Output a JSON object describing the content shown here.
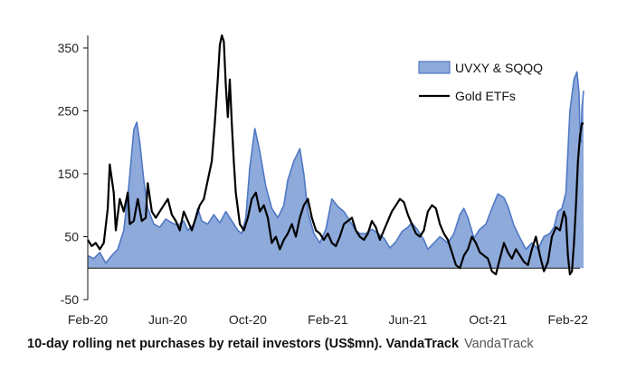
{
  "caption": {
    "text": "10-day rolling net purchases by retail investors (US$mn). VandaTrack",
    "credit": "VandaTrack"
  },
  "chart_data": {
    "type": "area",
    "ylim": [
      -50,
      370
    ],
    "yticks": [
      350,
      250,
      150,
      50,
      -50
    ],
    "xlim": [
      0,
      24.6
    ],
    "xticks": [
      {
        "label": "Feb-20",
        "x": 0
      },
      {
        "label": "Jun-20",
        "x": 4
      },
      {
        "label": "Oct-20",
        "x": 8
      },
      {
        "label": "Feb-21",
        "x": 12
      },
      {
        "label": "Jun-21",
        "x": 16
      },
      {
        "label": "Oct-21",
        "x": 20
      },
      {
        "label": "Feb-22",
        "x": 24
      }
    ],
    "legend_position": "top-right",
    "series": [
      {
        "name": "UVXY & SQQQ",
        "kind": "area",
        "color": "#8eaadb",
        "edge_color": "#4f78c4",
        "points": [
          [
            0,
            20
          ],
          [
            0.3,
            15
          ],
          [
            0.6,
            25
          ],
          [
            0.9,
            8
          ],
          [
            1.2,
            20
          ],
          [
            1.5,
            30
          ],
          [
            1.8,
            60
          ],
          [
            2.05,
            130
          ],
          [
            2.3,
            220
          ],
          [
            2.45,
            232
          ],
          [
            2.6,
            200
          ],
          [
            2.8,
            140
          ],
          [
            3.0,
            95
          ],
          [
            3.3,
            70
          ],
          [
            3.6,
            65
          ],
          [
            3.9,
            78
          ],
          [
            4.2,
            72
          ],
          [
            4.5,
            68
          ],
          [
            4.8,
            75
          ],
          [
            5.0,
            60
          ],
          [
            5.3,
            70
          ],
          [
            5.5,
            95
          ],
          [
            5.7,
            75
          ],
          [
            6.0,
            70
          ],
          [
            6.3,
            85
          ],
          [
            6.6,
            72
          ],
          [
            6.9,
            90
          ],
          [
            7.2,
            75
          ],
          [
            7.5,
            60
          ],
          [
            7.7,
            55
          ],
          [
            7.9,
            80
          ],
          [
            8.1,
            160
          ],
          [
            8.35,
            222
          ],
          [
            8.6,
            185
          ],
          [
            8.9,
            130
          ],
          [
            9.2,
            95
          ],
          [
            9.5,
            80
          ],
          [
            9.8,
            100
          ],
          [
            10.0,
            140
          ],
          [
            10.3,
            170
          ],
          [
            10.6,
            190
          ],
          [
            10.8,
            150
          ],
          [
            11.0,
            90
          ],
          [
            11.3,
            55
          ],
          [
            11.6,
            40
          ],
          [
            11.9,
            62
          ],
          [
            12.2,
            110
          ],
          [
            12.5,
            98
          ],
          [
            12.8,
            90
          ],
          [
            13.1,
            75
          ],
          [
            13.4,
            60
          ],
          [
            13.6,
            55
          ],
          [
            13.9,
            55
          ],
          [
            14.2,
            62
          ],
          [
            14.5,
            55
          ],
          [
            14.8,
            48
          ],
          [
            15.1,
            32
          ],
          [
            15.4,
            42
          ],
          [
            15.7,
            58
          ],
          [
            16.0,
            65
          ],
          [
            16.2,
            72
          ],
          [
            16.5,
            60
          ],
          [
            16.8,
            45
          ],
          [
            17.0,
            30
          ],
          [
            17.3,
            40
          ],
          [
            17.6,
            50
          ],
          [
            18.0,
            40
          ],
          [
            18.3,
            55
          ],
          [
            18.6,
            85
          ],
          [
            18.8,
            95
          ],
          [
            19.0,
            80
          ],
          [
            19.3,
            48
          ],
          [
            19.6,
            62
          ],
          [
            19.9,
            70
          ],
          [
            20.2,
            95
          ],
          [
            20.5,
            118
          ],
          [
            20.8,
            112
          ],
          [
            21.0,
            98
          ],
          [
            21.3,
            68
          ],
          [
            21.6,
            48
          ],
          [
            21.9,
            30
          ],
          [
            22.2,
            40
          ],
          [
            22.5,
            30
          ],
          [
            22.8,
            50
          ],
          [
            23.1,
            55
          ],
          [
            23.3,
            65
          ],
          [
            23.5,
            90
          ],
          [
            23.7,
            95
          ],
          [
            23.9,
            120
          ],
          [
            24.1,
            250
          ],
          [
            24.3,
            300
          ],
          [
            24.45,
            312
          ],
          [
            24.55,
            280
          ],
          [
            24.6,
            220
          ],
          [
            24.65,
            200
          ],
          [
            24.7,
            255
          ],
          [
            24.78,
            282
          ]
        ]
      },
      {
        "name": "Gold ETFs",
        "kind": "line",
        "color": "#000000",
        "points": [
          [
            0,
            45
          ],
          [
            0.2,
            35
          ],
          [
            0.4,
            40
          ],
          [
            0.6,
            30
          ],
          [
            0.8,
            40
          ],
          [
            1.0,
            95
          ],
          [
            1.1,
            165
          ],
          [
            1.3,
            120
          ],
          [
            1.4,
            60
          ],
          [
            1.6,
            110
          ],
          [
            1.8,
            90
          ],
          [
            2.0,
            120
          ],
          [
            2.1,
            70
          ],
          [
            2.3,
            75
          ],
          [
            2.5,
            110
          ],
          [
            2.7,
            75
          ],
          [
            2.9,
            80
          ],
          [
            3.0,
            135
          ],
          [
            3.2,
            90
          ],
          [
            3.4,
            80
          ],
          [
            3.6,
            90
          ],
          [
            3.8,
            100
          ],
          [
            4.0,
            110
          ],
          [
            4.2,
            85
          ],
          [
            4.4,
            75
          ],
          [
            4.6,
            60
          ],
          [
            4.8,
            90
          ],
          [
            5.0,
            75
          ],
          [
            5.2,
            60
          ],
          [
            5.4,
            80
          ],
          [
            5.6,
            100
          ],
          [
            5.8,
            110
          ],
          [
            6.0,
            140
          ],
          [
            6.2,
            170
          ],
          [
            6.35,
            230
          ],
          [
            6.5,
            300
          ],
          [
            6.6,
            355
          ],
          [
            6.7,
            370
          ],
          [
            6.8,
            360
          ],
          [
            6.9,
            290
          ],
          [
            7.0,
            240
          ],
          [
            7.1,
            300
          ],
          [
            7.2,
            230
          ],
          [
            7.3,
            170
          ],
          [
            7.4,
            120
          ],
          [
            7.6,
            70
          ],
          [
            7.8,
            60
          ],
          [
            8.0,
            80
          ],
          [
            8.2,
            110
          ],
          [
            8.4,
            120
          ],
          [
            8.6,
            90
          ],
          [
            8.8,
            100
          ],
          [
            9.0,
            80
          ],
          [
            9.2,
            40
          ],
          [
            9.4,
            50
          ],
          [
            9.6,
            30
          ],
          [
            9.8,
            45
          ],
          [
            10.0,
            55
          ],
          [
            10.2,
            70
          ],
          [
            10.4,
            50
          ],
          [
            10.6,
            80
          ],
          [
            10.8,
            100
          ],
          [
            11.0,
            110
          ],
          [
            11.2,
            80
          ],
          [
            11.4,
            60
          ],
          [
            11.6,
            55
          ],
          [
            11.8,
            45
          ],
          [
            12.0,
            55
          ],
          [
            12.2,
            40
          ],
          [
            12.4,
            35
          ],
          [
            12.6,
            50
          ],
          [
            12.8,
            70
          ],
          [
            13.0,
            75
          ],
          [
            13.2,
            80
          ],
          [
            13.4,
            60
          ],
          [
            13.6,
            50
          ],
          [
            13.8,
            45
          ],
          [
            14.0,
            55
          ],
          [
            14.2,
            75
          ],
          [
            14.4,
            65
          ],
          [
            14.6,
            45
          ],
          [
            14.8,
            60
          ],
          [
            15.0,
            75
          ],
          [
            15.2,
            90
          ],
          [
            15.4,
            100
          ],
          [
            15.6,
            110
          ],
          [
            15.8,
            105
          ],
          [
            16.0,
            85
          ],
          [
            16.2,
            70
          ],
          [
            16.4,
            55
          ],
          [
            16.6,
            50
          ],
          [
            16.8,
            60
          ],
          [
            17.0,
            90
          ],
          [
            17.2,
            100
          ],
          [
            17.4,
            95
          ],
          [
            17.6,
            70
          ],
          [
            17.8,
            55
          ],
          [
            18.0,
            45
          ],
          [
            18.2,
            25
          ],
          [
            18.4,
            5
          ],
          [
            18.6,
            0
          ],
          [
            18.8,
            20
          ],
          [
            19.0,
            30
          ],
          [
            19.2,
            50
          ],
          [
            19.4,
            40
          ],
          [
            19.6,
            25
          ],
          [
            19.8,
            20
          ],
          [
            20.0,
            15
          ],
          [
            20.2,
            -5
          ],
          [
            20.4,
            -10
          ],
          [
            20.6,
            15
          ],
          [
            20.8,
            40
          ],
          [
            21.0,
            25
          ],
          [
            21.2,
            15
          ],
          [
            21.4,
            30
          ],
          [
            21.6,
            20
          ],
          [
            21.8,
            10
          ],
          [
            22.0,
            5
          ],
          [
            22.2,
            30
          ],
          [
            22.4,
            50
          ],
          [
            22.6,
            20
          ],
          [
            22.8,
            -5
          ],
          [
            23.0,
            10
          ],
          [
            23.2,
            50
          ],
          [
            23.4,
            65
          ],
          [
            23.6,
            60
          ],
          [
            23.8,
            90
          ],
          [
            23.9,
            80
          ],
          [
            24.0,
            20
          ],
          [
            24.1,
            -10
          ],
          [
            24.2,
            -5
          ],
          [
            24.3,
            40
          ],
          [
            24.4,
            100
          ],
          [
            24.5,
            170
          ],
          [
            24.6,
            210
          ],
          [
            24.7,
            230
          ],
          [
            24.78,
            230
          ]
        ]
      }
    ]
  }
}
